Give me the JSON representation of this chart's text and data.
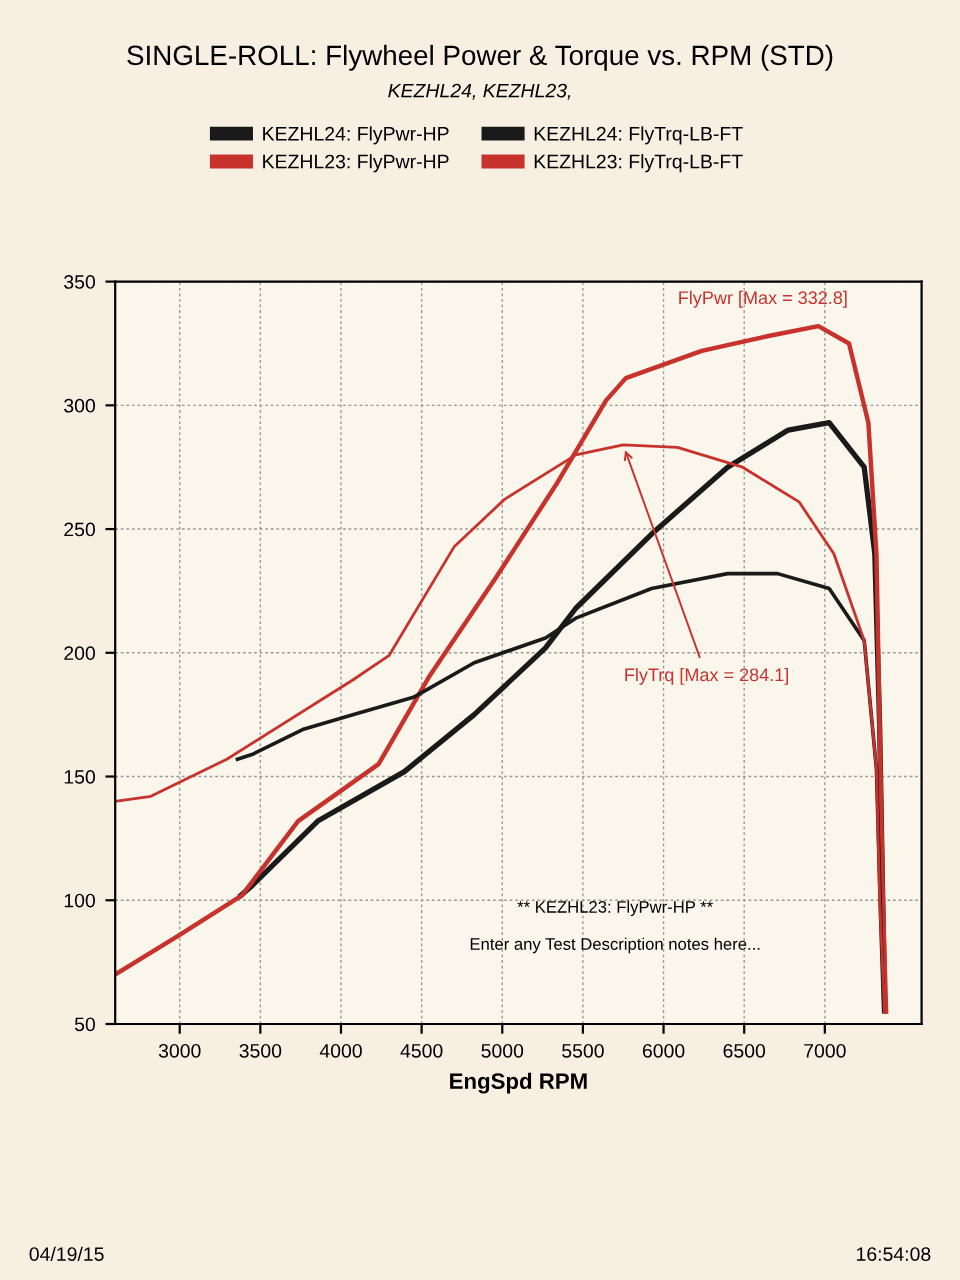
{
  "chart_data": {
    "type": "line",
    "title": "SINGLE-ROLL: Flywheel Power & Torque vs. RPM (STD)",
    "subtitle": "KEZHL24, KEZHL23,",
    "xlabel": "EngSpd RPM",
    "xlim": [
      2600,
      7600
    ],
    "xticks": [
      3000,
      3500,
      4000,
      4500,
      5000,
      5500,
      6000,
      6500,
      7000
    ],
    "ylim": [
      50,
      350
    ],
    "yticks": [
      50,
      100,
      150,
      200,
      250,
      300,
      350
    ],
    "grid": true,
    "legend": "top",
    "line_style": "solid",
    "series": [
      {
        "name": "KEZHL24: FlyPwr-HP",
        "color": "#1a1a1a",
        "x": [
          3380,
          3450,
          3856,
          4393,
          4826,
          5268,
          5456,
          5926,
          6397,
          6773,
          7027,
          7244,
          7310,
          7340,
          7370
        ],
        "values": [
          102,
          106,
          132,
          152,
          175,
          202,
          218,
          248,
          275,
          290,
          293,
          275,
          240,
          170,
          60
        ]
      },
      {
        "name": "KEZHL23: FlyPwr-HP",
        "color": "#c8322d",
        "x": [
          2600,
          3000,
          3386,
          3734,
          4233,
          4543,
          4957,
          5334,
          5644,
          5766,
          6237,
          6650,
          6960,
          7150,
          7270,
          7320,
          7340,
          7360,
          7380
        ],
        "values": [
          70,
          86,
          102,
          132,
          155,
          190,
          230,
          268,
          302,
          311,
          322,
          328,
          332,
          325,
          293,
          240,
          170,
          100,
          55
        ]
      },
      {
        "name": "KEZHL24: FlyTrq-LB-FT",
        "color": "#1a1a1a",
        "x": [
          3358,
          3452,
          3762,
          4073,
          4449,
          4826,
          5268,
          5456,
          5926,
          6397,
          6707,
          7027,
          7244,
          7320,
          7345,
          7365
        ],
        "values": [
          157,
          159,
          169,
          175,
          182,
          196,
          206,
          214,
          226,
          232,
          232,
          226,
          205,
          153,
          95,
          55
        ]
      },
      {
        "name": "KEZHL23: FlyTrq-LB-FT",
        "color": "#c8322d",
        "x": [
          2600,
          2821,
          3292,
          4073,
          4299,
          4703,
          5014,
          5456,
          5750,
          6086,
          6490,
          6840,
          7056,
          7244,
          7320,
          7340,
          7370
        ],
        "values": [
          140,
          142,
          157,
          189,
          199,
          243,
          262,
          280,
          284,
          283,
          275,
          261,
          240,
          205,
          153,
          100,
          55
        ]
      }
    ],
    "annotations": [
      {
        "text": "FlyTrq [Max = 284.1]",
        "x": 5750,
        "y": 284
      },
      {
        "text": "FlyPwr [Max = 332.8]",
        "x": 6960,
        "y": 332
      },
      "** KEZHL23: FlyPwr-HP **",
      "Enter any Test Description notes here...",
      "04/19/15",
      "16:54:08"
    ]
  }
}
